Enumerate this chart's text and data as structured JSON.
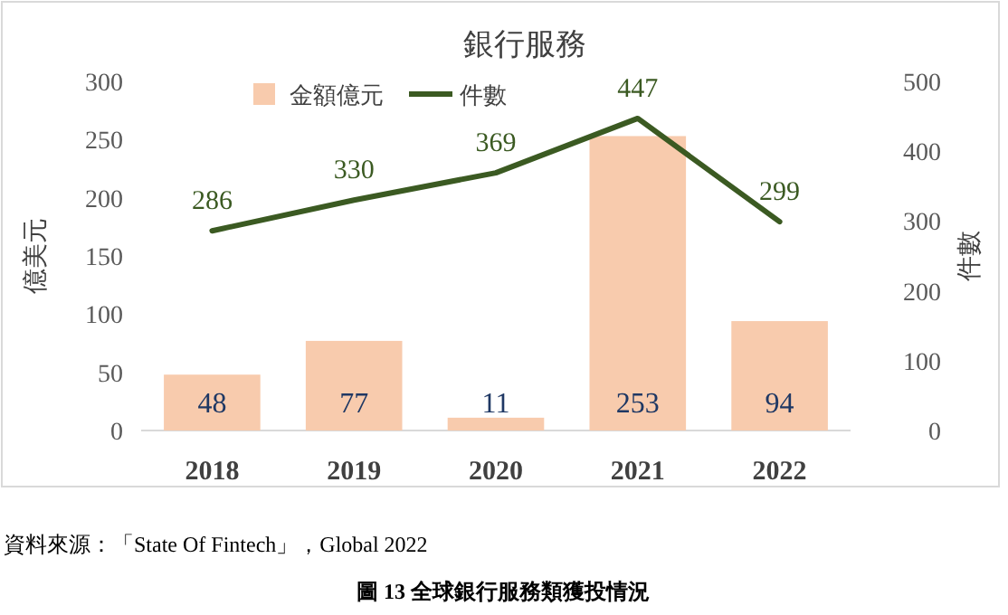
{
  "chart_data": {
    "type": "bar",
    "title": "銀行服務",
    "categories": [
      "2018",
      "2019",
      "2020",
      "2021",
      "2022"
    ],
    "series": [
      {
        "name": "金額億元",
        "color": "#f8cbad",
        "values": [
          48,
          77,
          11,
          253,
          94
        ]
      },
      {
        "name": "件數",
        "type": "line",
        "axis": "y2",
        "color": "#3b5a22",
        "values": [
          286,
          330,
          369,
          447,
          299
        ]
      }
    ],
    "ylabel": "億美元",
    "y2label": "件數",
    "ylim": [
      0,
      300
    ],
    "yticks": [
      0,
      50,
      100,
      150,
      200,
      250,
      300
    ],
    "y2lim": [
      0,
      500
    ],
    "y2ticks": [
      0,
      100,
      200,
      300,
      400,
      500
    ],
    "data_labels": true,
    "legend": "top",
    "grid": false,
    "marker": "none",
    "annotations": [
      "資料來源：「State Of Fintech」，Global 2022",
      "圖 13 全球銀行服務類獲投情況"
    ]
  }
}
